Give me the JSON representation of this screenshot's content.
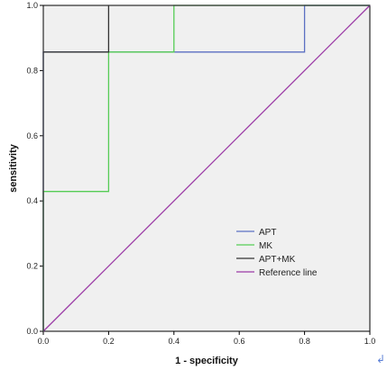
{
  "chart_data": {
    "type": "line",
    "xlabel": "1 - specificity",
    "ylabel": "sensitivity",
    "xlim": [
      0.0,
      1.0
    ],
    "ylim": [
      0.0,
      1.0
    ],
    "x_ticks": [
      "0.0",
      "0.2",
      "0.4",
      "0.6",
      "0.8",
      "1.0"
    ],
    "y_ticks": [
      "0.0",
      "0.2",
      "0.4",
      "0.6",
      "0.8",
      "1.0"
    ],
    "grid": false,
    "legend_position": "bottom-right",
    "plot_background": "#f0f0f0",
    "series": [
      {
        "name": "APT",
        "color": "#5b6fc2",
        "x": [
          0.0,
          0.0,
          0.2,
          0.8,
          0.8,
          1.0
        ],
        "y": [
          0.0,
          0.857,
          0.857,
          0.857,
          1.0,
          1.0
        ]
      },
      {
        "name": "MK",
        "color": "#55cc55",
        "x": [
          0.0,
          0.0,
          0.2,
          0.2,
          0.4,
          0.4,
          1.0
        ],
        "y": [
          0.0,
          0.429,
          0.429,
          0.857,
          0.857,
          1.0,
          1.0
        ]
      },
      {
        "name": "APT+MK",
        "color": "#333333",
        "x": [
          0.0,
          0.0,
          0.2,
          0.2,
          1.0
        ],
        "y": [
          0.0,
          0.857,
          0.857,
          1.0,
          1.0
        ]
      },
      {
        "name": "Reference line",
        "color": "#9b3aa6",
        "x": [
          0.0,
          1.0
        ],
        "y": [
          0.0,
          1.0
        ]
      }
    ]
  },
  "corner_mark": "↲"
}
